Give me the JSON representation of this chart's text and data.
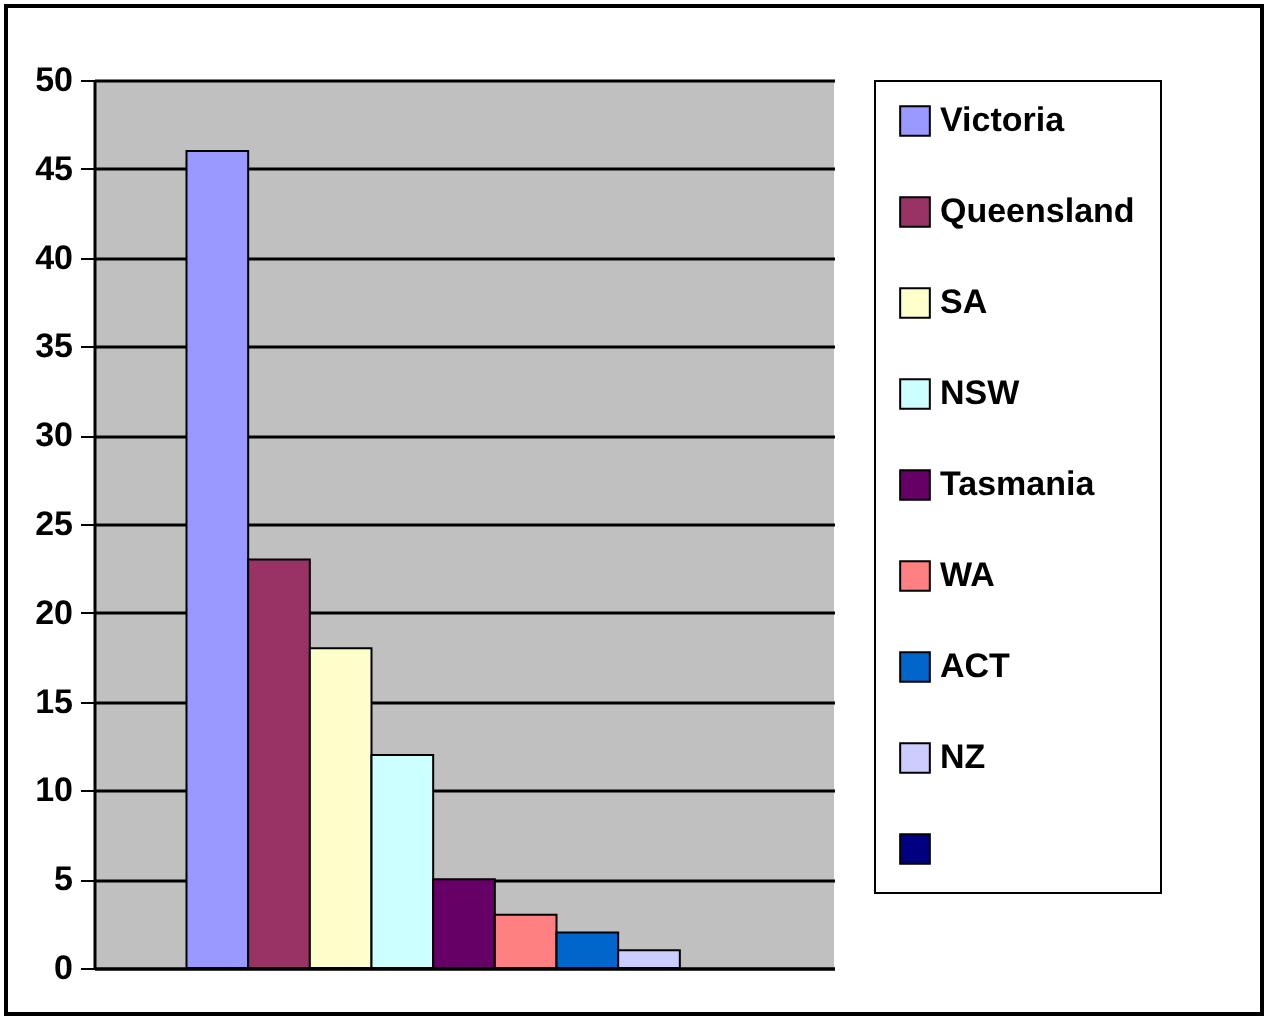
{
  "chart_data": {
    "type": "bar",
    "categories": [
      null
    ],
    "series": [
      {
        "name": "Victoria",
        "color": "#9999ff",
        "values": [
          46
        ]
      },
      {
        "name": "Queensland",
        "color": "#993366",
        "values": [
          23
        ]
      },
      {
        "name": "SA",
        "color": "#ffffcc",
        "values": [
          18
        ]
      },
      {
        "name": "NSW",
        "color": "#ccffff",
        "values": [
          12
        ]
      },
      {
        "name": "Tasmania",
        "color": "#660066",
        "values": [
          5
        ]
      },
      {
        "name": "WA",
        "color": "#ff8080",
        "values": [
          3
        ]
      },
      {
        "name": "ACT",
        "color": "#0066cc",
        "values": [
          2
        ]
      },
      {
        "name": "NZ",
        "color": "#ccccff",
        "values": [
          1
        ]
      },
      {
        "color": "#000080",
        "values": [
          null
        ]
      }
    ],
    "ylim": [
      0,
      50
    ],
    "yticks": [
      0,
      5,
      10,
      15,
      20,
      25,
      30,
      35,
      40,
      45,
      50
    ],
    "grid": "y",
    "legend": "right"
  }
}
